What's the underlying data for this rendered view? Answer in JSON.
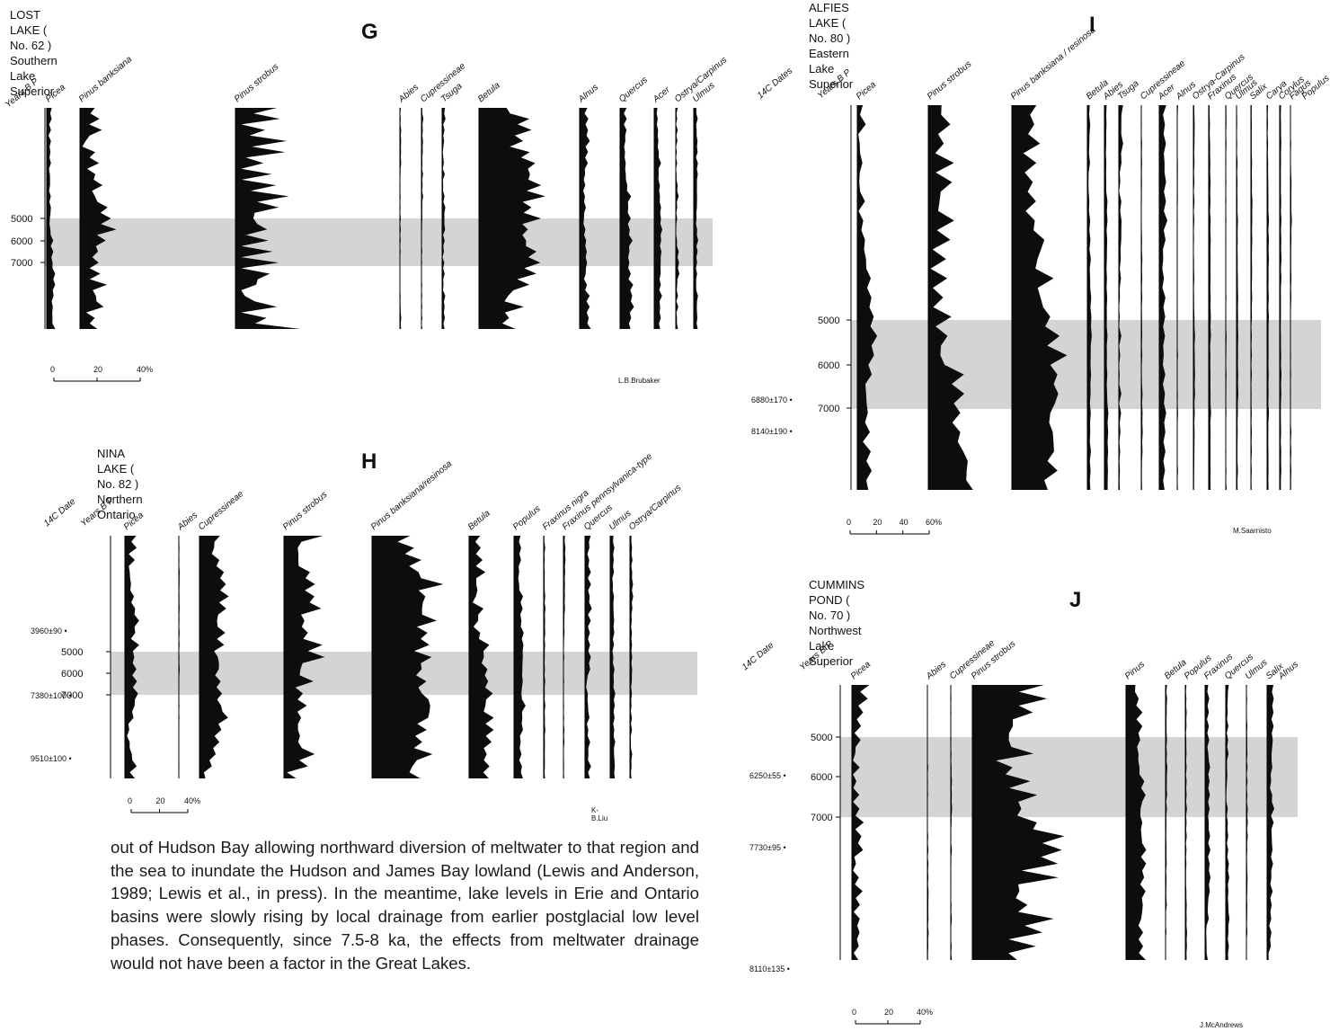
{
  "panels": [
    {
      "id": "G",
      "site": "LOST LAKE ( No. 62 )",
      "region": "Southern Lake Superior",
      "letter": "G",
      "headers": [
        "Years B P"
      ],
      "taxa": [
        "Picea",
        "Pinus banksiana",
        "Pinus strobus",
        "Abies",
        "Cupressineae",
        "Tsuga",
        "Betula",
        "Alnus",
        "Quercus",
        "Acer",
        "Ostrya/Carpinus",
        "Ulmus"
      ],
      "ages": [
        "5000",
        "6000",
        "7000"
      ],
      "dates": [],
      "scale": [
        "0",
        "20",
        "40%"
      ],
      "credit": "L.B.Brubaker"
    },
    {
      "id": "H",
      "site": "NINA LAKE ( No. 82 )",
      "region": "Northern Ontario",
      "letter": "H",
      "headers": [
        "14C Date",
        "Years B P"
      ],
      "taxa": [
        "Picea",
        "Abies",
        "Cupressineae",
        "Pinus strobus",
        "Pinus banksiana/resinosa",
        "Betula",
        "Populus",
        "Fraxinus nigra",
        "Fraxinus pennsylvanica-type",
        "Quercus",
        "Ulmus",
        "Ostrya/Carpinus"
      ],
      "ages": [
        "5000",
        "6000",
        "7000"
      ],
      "dates": [
        "3960±90",
        "7380±100",
        "9510±100"
      ],
      "scale": [
        "0",
        "20",
        "40%"
      ],
      "credit": "K-B.Liu"
    },
    {
      "id": "I",
      "site": "ALFIES LAKE ( No. 80 )",
      "region": "Eastern Lake Superior",
      "letter": "I",
      "headers": [
        "14C Dates",
        "Years B P"
      ],
      "taxa": [
        "Picea",
        "Pinus strobus",
        "Pinus banksiana / resinosa",
        "Betula",
        "Abies",
        "Tsuga",
        "Cupressineae",
        "Acer",
        "Alnus",
        "Ostrya-Carpinus",
        "Fraxinus",
        "Quercus",
        "Ulmus",
        "Salix",
        "Carya",
        "Corylus",
        "Fagus",
        "Populus"
      ],
      "ages": [
        "5000",
        "6000",
        "7000"
      ],
      "dates": [
        "6880±170",
        "8140±190"
      ],
      "scale": [
        "0",
        "20",
        "40",
        "60%"
      ],
      "credit": "M.Saarnisto"
    },
    {
      "id": "J",
      "site": "CUMMINS POND ( No. 70 )",
      "region": "Northwest Lake Superior",
      "letter": "J",
      "headers": [
        "14C Date",
        "Years B P"
      ],
      "taxa": [
        "Picea",
        "Abies",
        "Cupressineae",
        "Pinus strobus",
        "Pinus",
        "Betula",
        "Populus",
        "Fraxinus",
        "Quercus",
        "Ulmus",
        "Salix",
        "Alnus"
      ],
      "ages": [
        "5000",
        "6000",
        "7000"
      ],
      "dates": [
        "6250±55",
        "7730±95",
        "8110±135"
      ],
      "scale": [
        "0",
        "20",
        "40%"
      ],
      "credit": "J.McAndrews"
    }
  ],
  "body_text": "out of Hudson Bay allowing northward diversion of meltwater to that region and the sea to inundate the Hudson and James Bay lowland (Lewis and Anderson, 1989; Lewis et al., in press). In the meantime, lake levels in Erie and Ontario basins were slowly rising by local drainage from earlier postglacial low level phases. Consequently, since 7.5-8 ka, the effects from meltwater drainage would not have been a factor in the Great Lakes."
}
